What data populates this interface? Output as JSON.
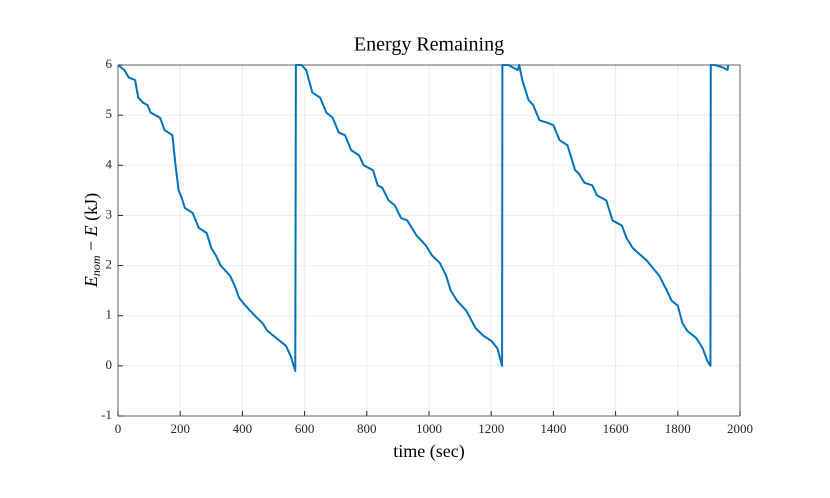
{
  "chart_data": {
    "type": "line",
    "title": "Energy Remaining",
    "xlabel": "time (sec)",
    "ylabel": [
      "E",
      "nom",
      " − ",
      "E",
      " (kJ)"
    ],
    "xlim": [
      0,
      2000
    ],
    "xticks": [
      0,
      200,
      400,
      600,
      800,
      1000,
      1200,
      1400,
      1600,
      1800,
      2000
    ],
    "ylim": [
      -1,
      6
    ],
    "yticks": [
      -1,
      0,
      1,
      2,
      3,
      4,
      5,
      6
    ],
    "grid": true,
    "series": [
      {
        "color": "#0072bd",
        "x": [
          0,
          20,
          35,
          55,
          65,
          80,
          95,
          105,
          135,
          150,
          175,
          185,
          195,
          205,
          215,
          240,
          260,
          285,
          300,
          315,
          330,
          360,
          375,
          390,
          410,
          440,
          465,
          480,
          510,
          540,
          555,
          570,
          572,
          590,
          605,
          625,
          650,
          670,
          690,
          710,
          730,
          750,
          775,
          790,
          820,
          835,
          850,
          870,
          890,
          910,
          930,
          960,
          990,
          1010,
          1035,
          1055,
          1070,
          1090,
          1120,
          1150,
          1175,
          1200,
          1220,
          1235,
          1236,
          1255,
          1270,
          1285,
          1290,
          1300,
          1320,
          1335,
          1355,
          1380,
          1400,
          1420,
          1445,
          1470,
          1480,
          1500,
          1525,
          1540,
          1570,
          1590,
          1620,
          1635,
          1655,
          1700,
          1740,
          1765,
          1780,
          1800,
          1815,
          1830,
          1860,
          1880,
          1895,
          1905,
          1906,
          1920,
          1945,
          1960,
          1962
        ],
        "values": [
          6,
          5.9,
          5.75,
          5.7,
          5.35,
          5.25,
          5.2,
          5.05,
          4.95,
          4.7,
          4.6,
          4.0,
          3.5,
          3.35,
          3.15,
          3.05,
          2.75,
          2.65,
          2.35,
          2.2,
          2.0,
          1.8,
          1.6,
          1.35,
          1.2,
          1.0,
          0.85,
          0.7,
          0.55,
          0.4,
          0.2,
          -0.1,
          6,
          6,
          5.9,
          5.45,
          5.35,
          5.05,
          4.95,
          4.65,
          4.6,
          4.3,
          4.2,
          4.0,
          3.9,
          3.6,
          3.55,
          3.3,
          3.2,
          2.95,
          2.9,
          2.6,
          2.4,
          2.2,
          2.05,
          1.8,
          1.5,
          1.3,
          1.1,
          0.75,
          0.6,
          0.5,
          0.35,
          0.0,
          6,
          6,
          5.95,
          5.9,
          6.0,
          5.7,
          5.3,
          5.2,
          4.9,
          4.85,
          4.8,
          4.5,
          4.4,
          3.9,
          3.85,
          3.65,
          3.6,
          3.4,
          3.3,
          2.9,
          2.8,
          2.55,
          2.35,
          2.1,
          1.8,
          1.5,
          1.3,
          1.2,
          0.85,
          0.7,
          0.55,
          0.35,
          0.1,
          0.0,
          6,
          6,
          5.95,
          5.9,
          6.0
        ]
      }
    ]
  }
}
